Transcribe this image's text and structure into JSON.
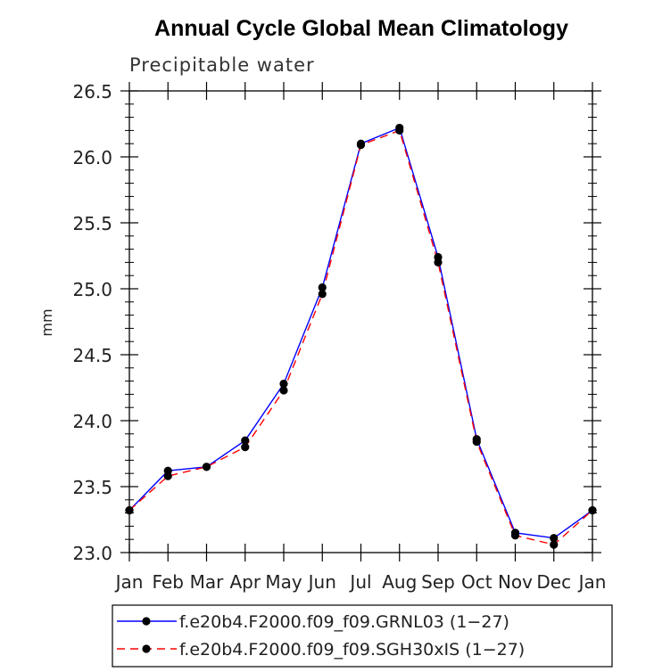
{
  "chart_data": {
    "type": "line",
    "title": "Annual Cycle Global Mean Climatology",
    "subtitle": "Precipitable water",
    "xlabel": "",
    "ylabel": "mm",
    "categories": [
      "Jan",
      "Feb",
      "Mar",
      "Apr",
      "May",
      "Jun",
      "Jul",
      "Aug",
      "Sep",
      "Oct",
      "Nov",
      "Dec",
      "Jan"
    ],
    "ylim": [
      23.0,
      26.5
    ],
    "yticks": [
      "23.0",
      "23.5",
      "24.0",
      "24.5",
      "25.0",
      "25.5",
      "26.0",
      "26.5"
    ],
    "series": [
      {
        "name": "f.e20b4.F2000.f09_f09.GRNL03 (1−27)",
        "color": "#0000ff",
        "style": "solid",
        "values": [
          23.32,
          23.62,
          23.65,
          23.85,
          24.28,
          25.01,
          26.1,
          26.22,
          25.24,
          23.86,
          23.15,
          23.11,
          23.32
        ]
      },
      {
        "name": "f.e20b4.F2000.f09_f09.SGH30xIS (1−27)",
        "color": "#ff0000",
        "style": "dashed",
        "values": [
          23.32,
          23.58,
          23.65,
          23.8,
          24.23,
          24.96,
          26.09,
          26.2,
          25.2,
          23.84,
          23.13,
          23.06,
          23.32
        ]
      }
    ],
    "legend": "bottom"
  }
}
